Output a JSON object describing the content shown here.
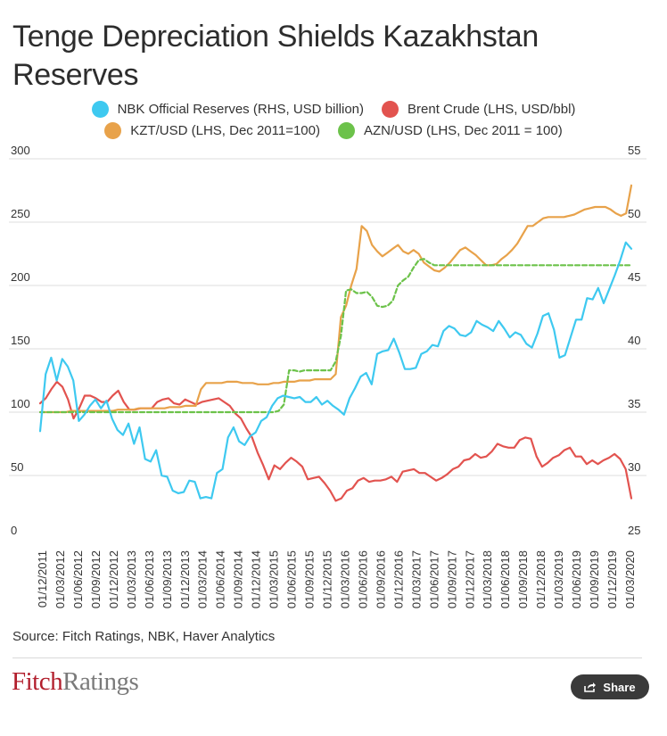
{
  "chart_data": {
    "type": "line",
    "title": "Tenge Depreciation Shields Kazakhstan Reserves",
    "source": "Source: Fitch Ratings, NBK, Haver Analytics",
    "left_axis": {
      "ticks": [
        "300",
        "250",
        "200",
        "150",
        "100",
        "50",
        "0"
      ],
      "ylim": [
        0,
        300
      ]
    },
    "right_axis": {
      "ticks": [
        "55",
        "50",
        "45",
        "40",
        "35",
        "30",
        "25"
      ],
      "ylim": [
        25,
        55
      ]
    },
    "x_tick_labels": [
      "01/12/2011",
      "01/03/2012",
      "01/06/2012",
      "01/09/2012",
      "01/12/2012",
      "01/03/2013",
      "01/06/2013",
      "01/09/2013",
      "01/12/2013",
      "01/03/2014",
      "01/06/2014",
      "01/09/2014",
      "01/12/2014",
      "01/03/2015",
      "01/06/2015",
      "01/09/2015",
      "01/12/2015",
      "01/03/2016",
      "01/06/2016",
      "01/09/2016",
      "01/12/2016",
      "01/03/2017",
      "01/06/2017",
      "01/09/2017",
      "01/12/2017",
      "01/03/2018",
      "01/06/2018",
      "01/09/2018",
      "01/12/2018",
      "01/03/2019",
      "01/06/2019",
      "01/09/2019",
      "01/12/2019",
      "01/03/2020"
    ],
    "series": [
      {
        "name": "NBK Official Reserves (RHS, USD billion)",
        "axis": "right",
        "color": "#3ec9f0",
        "dash": false,
        "values": [
          33.5,
          38.0,
          39.3,
          37.5,
          39.2,
          38.6,
          37.5,
          34.3,
          34.8,
          35.5,
          36.0,
          35.3,
          35.9,
          34.5,
          33.6,
          33.2,
          34.1,
          32.5,
          33.8,
          31.3,
          31.1,
          32.0,
          30.0,
          29.9,
          28.8,
          28.6,
          28.7,
          29.6,
          29.5,
          28.2,
          28.3,
          28.2,
          30.2,
          30.5,
          33.0,
          33.8,
          32.7,
          32.4,
          33.1,
          33.4,
          34.3,
          34.6,
          35.5,
          36.1,
          36.3,
          36.2,
          36.1,
          36.2,
          35.8,
          35.8,
          36.2,
          35.6,
          35.9,
          35.5,
          35.2,
          34.8,
          36.1,
          36.9,
          37.8,
          38.1,
          37.2,
          39.6,
          39.8,
          39.9,
          40.8,
          39.7,
          38.4,
          38.4,
          38.5,
          39.6,
          39.8,
          40.3,
          40.2,
          41.4,
          41.8,
          41.6,
          41.1,
          41.0,
          41.3,
          42.2,
          41.9,
          41.7,
          41.4,
          42.2,
          41.6,
          40.9,
          41.3,
          41.1,
          40.4,
          40.1,
          41.2,
          42.6,
          42.8,
          41.5,
          39.3,
          39.5,
          40.9,
          42.3,
          42.3,
          44.0,
          43.9,
          44.8,
          43.6,
          44.7,
          45.8,
          47.0,
          48.4,
          47.9
        ]
      },
      {
        "name": "Brent Crude (LHS, USD/bbl)",
        "axis": "left",
        "color": "#e2534f",
        "dash": false,
        "values": [
          107,
          111,
          118,
          124,
          120,
          110,
          95,
          103,
          113,
          113,
          111,
          108,
          108,
          113,
          117,
          108,
          102,
          102,
          103,
          103,
          103,
          108,
          110,
          111,
          107,
          106,
          110,
          108,
          106,
          108,
          109,
          110,
          111,
          108,
          105,
          99,
          95,
          87,
          80,
          68,
          58,
          47,
          58,
          55,
          60,
          64,
          61,
          57,
          47,
          48,
          49,
          44,
          38,
          30,
          32,
          38,
          40,
          46,
          48,
          45,
          46,
          46,
          47,
          49,
          45,
          53,
          54,
          55,
          52,
          52,
          49,
          46,
          48,
          51,
          55,
          57,
          62,
          63,
          67,
          64,
          65,
          69,
          75,
          73,
          72,
          72,
          78,
          80,
          79,
          65,
          57,
          60,
          64,
          66,
          70,
          72,
          65,
          65,
          59,
          62,
          59,
          62,
          64,
          67,
          63,
          55,
          32
        ]
      },
      {
        "name": "KZT/USD (LHS, Dec 2011=100)",
        "axis": "left",
        "color": "#e8a24a",
        "dash": false,
        "values": [
          100,
          100,
          100,
          100,
          100,
          100,
          101,
          101,
          101,
          101,
          101,
          101,
          101,
          101,
          101,
          102,
          102,
          102,
          102,
          103,
          103,
          103,
          103,
          103,
          103,
          104,
          104,
          104,
          105,
          105,
          105,
          118,
          123,
          123,
          123,
          123,
          124,
          124,
          124,
          123,
          123,
          123,
          122,
          122,
          122,
          123,
          123,
          124,
          124,
          124,
          125,
          125,
          125,
          126,
          126,
          126,
          126,
          130,
          175,
          184,
          200,
          213,
          247,
          243,
          232,
          227,
          223,
          226,
          229,
          232,
          227,
          225,
          228,
          225,
          218,
          215,
          212,
          211,
          214,
          218,
          223,
          228,
          230,
          227,
          224,
          220,
          216,
          216,
          217,
          221,
          224,
          228,
          233,
          240,
          247,
          247,
          250,
          253,
          254,
          254,
          254,
          254,
          255,
          256,
          258,
          260,
          261,
          262,
          262,
          262,
          260,
          257,
          255,
          257,
          279
        ]
      },
      {
        "name": "AZN/USD (LHS, Dec 2011 = 100)",
        "axis": "left",
        "color": "#6cc24a",
        "dash": true,
        "values": [
          100,
          100,
          100,
          100,
          100,
          100,
          100,
          100,
          100,
          100,
          100,
          100,
          100,
          100,
          100,
          100,
          100,
          100,
          100,
          100,
          100,
          100,
          100,
          100,
          100,
          100,
          100,
          100,
          100,
          100,
          100,
          100,
          100,
          100,
          100,
          100,
          100,
          100,
          100,
          100,
          100,
          100,
          100,
          100,
          100,
          100,
          101,
          106,
          133,
          133,
          132,
          133,
          133,
          133,
          133,
          133,
          133,
          140,
          160,
          196,
          197,
          194,
          194,
          195,
          191,
          184,
          183,
          184,
          188,
          200,
          204,
          207,
          214,
          220,
          221,
          218,
          216,
          216,
          216,
          216,
          216,
          216,
          216,
          216,
          216,
          216,
          216,
          216,
          216,
          216,
          216,
          216,
          216,
          216,
          216,
          216,
          216,
          216,
          216,
          216,
          216,
          216,
          216,
          216,
          216,
          216,
          216,
          216,
          216,
          216,
          216,
          216,
          216,
          216,
          216
        ]
      }
    ]
  },
  "footer": {
    "logo_primary": "Fitch",
    "logo_secondary": "Ratings",
    "share_label": "Share",
    "share_icon": "share-icon"
  }
}
